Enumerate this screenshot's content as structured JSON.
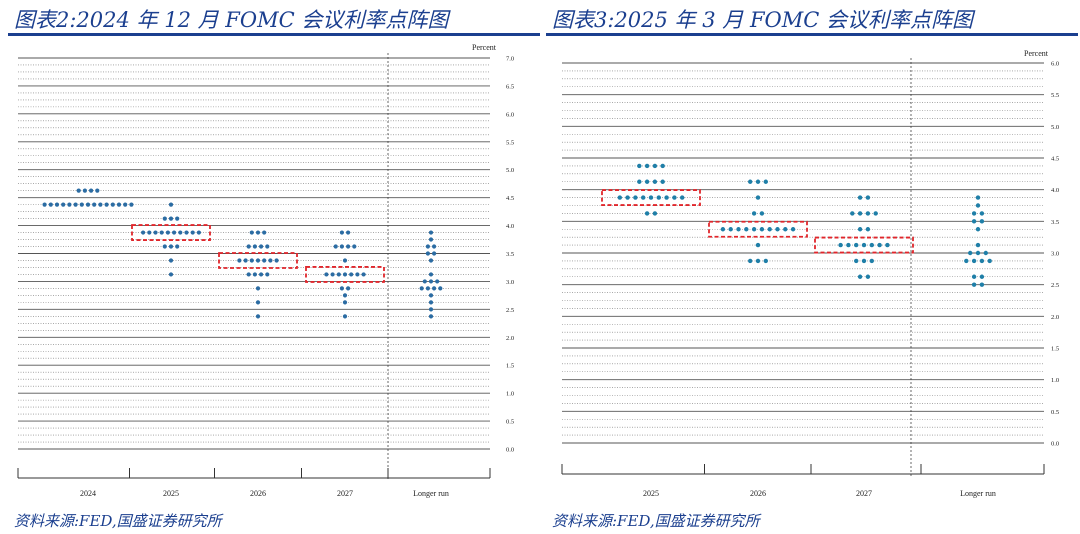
{
  "charts": [
    {
      "title": "图表2:2024 年 12 月 FOMC 会议利率点阵图",
      "source": "资料来源:FED,国盛证券研究所",
      "accent": "#1b3f8f",
      "dot_color": "#2b6ca3",
      "highlight_color": "#e0262b",
      "chart_data": {
        "type": "scatter",
        "unit_label": "Percent",
        "ylim": [
          0,
          7
        ],
        "y_ticks": [
          "0.0",
          "0.5",
          "1.0",
          "1.5",
          "2.0",
          "2.5",
          "3.0",
          "3.5",
          "4.0",
          "4.5",
          "5.0",
          "5.5",
          "6.0",
          "6.5",
          "7.0"
        ],
        "categories": [
          "2024",
          "2025",
          "2026",
          "2027",
          "Longer run"
        ],
        "grid": true,
        "dots": [
          {
            "category": "2024",
            "values": [
              [
                4.625,
                4
              ],
              [
                4.375,
                15
              ]
            ]
          },
          {
            "category": "2025",
            "values": [
              [
                4.375,
                1
              ],
              [
                4.125,
                3
              ],
              [
                3.875,
                10
              ],
              [
                3.625,
                3
              ],
              [
                3.375,
                1
              ],
              [
                3.125,
                1
              ]
            ]
          },
          {
            "category": "2026",
            "values": [
              [
                3.875,
                3
              ],
              [
                3.625,
                4
              ],
              [
                3.375,
                7
              ],
              [
                3.125,
                4
              ],
              [
                2.875,
                1
              ],
              [
                2.625,
                1
              ],
              [
                2.375,
                1
              ]
            ]
          },
          {
            "category": "2027",
            "values": [
              [
                3.875,
                2
              ],
              [
                3.625,
                4
              ],
              [
                3.375,
                1
              ],
              [
                3.125,
                7
              ],
              [
                2.875,
                2
              ],
              [
                2.75,
                1
              ],
              [
                2.625,
                1
              ],
              [
                2.375,
                1
              ]
            ]
          },
          {
            "category": "Longer run",
            "values": [
              [
                3.875,
                1
              ],
              [
                3.75,
                1
              ],
              [
                3.625,
                2
              ],
              [
                3.5,
                2
              ],
              [
                3.375,
                1
              ],
              [
                3.125,
                1
              ],
              [
                3.0,
                3
              ],
              [
                2.875,
                4
              ],
              [
                2.75,
                1
              ],
              [
                2.625,
                1
              ],
              [
                2.5,
                1
              ],
              [
                2.375,
                1
              ]
            ]
          }
        ],
        "highlights": [
          {
            "category": "2025",
            "value": 3.875
          },
          {
            "category": "2026",
            "value": 3.375
          },
          {
            "category": "2027",
            "value": 3.125
          }
        ]
      }
    },
    {
      "title": "图表3:2025 年 3 月 FOMC 会议利率点阵图",
      "source": "资料来源:FED,国盛证券研究所",
      "accent": "#1b3f8f",
      "dot_color": "#1f7fa8",
      "highlight_color": "#e0262b",
      "chart_data": {
        "type": "scatter",
        "unit_label": "Percent",
        "ylim": [
          0,
          6
        ],
        "y_ticks": [
          "0.0",
          "0.5",
          "1.0",
          "1.5",
          "2.0",
          "2.5",
          "3.0",
          "3.5",
          "4.0",
          "4.5",
          "5.0",
          "5.5",
          "6.0"
        ],
        "categories": [
          "2025",
          "2026",
          "2027",
          "Longer run"
        ],
        "grid": true,
        "dots": [
          {
            "category": "2025",
            "values": [
              [
                4.375,
                4
              ],
              [
                4.125,
                4
              ],
              [
                3.875,
                9
              ],
              [
                3.625,
                2
              ]
            ]
          },
          {
            "category": "2026",
            "values": [
              [
                4.125,
                3
              ],
              [
                3.875,
                1
              ],
              [
                3.625,
                2
              ],
              [
                3.375,
                10
              ],
              [
                3.125,
                1
              ],
              [
                2.875,
                3
              ]
            ]
          },
          {
            "category": "2027",
            "values": [
              [
                3.875,
                2
              ],
              [
                3.625,
                4
              ],
              [
                3.375,
                2
              ],
              [
                3.125,
                7
              ],
              [
                2.875,
                3
              ],
              [
                2.625,
                2
              ]
            ]
          },
          {
            "category": "Longer run",
            "values": [
              [
                3.875,
                1
              ],
              [
                3.75,
                1
              ],
              [
                3.625,
                2
              ],
              [
                3.5,
                2
              ],
              [
                3.375,
                1
              ],
              [
                3.125,
                1
              ],
              [
                3.0,
                3
              ],
              [
                2.875,
                4
              ],
              [
                2.625,
                2
              ],
              [
                2.5,
                2
              ]
            ]
          }
        ],
        "highlights": [
          {
            "category": "2025",
            "value": 3.875
          },
          {
            "category": "2026",
            "value": 3.375
          },
          {
            "category": "2027",
            "value": 3.125
          }
        ]
      }
    }
  ]
}
